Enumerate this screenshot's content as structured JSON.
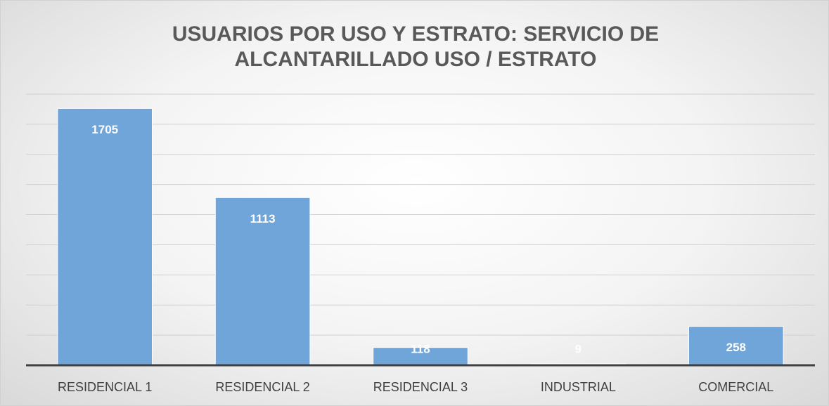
{
  "chart_data": {
    "type": "bar",
    "title": "USUARIOS POR USO Y ESTRATO:  SERVICIO DE ALCANTARILLADO USO / ESTRATO",
    "categories": [
      "RESIDENCIAL 1",
      "RESIDENCIAL 2",
      "RESIDENCIAL 3",
      "INDUSTRIAL",
      "COMERCIAL"
    ],
    "values": [
      1705,
      1113,
      118,
      9,
      258
    ],
    "color": "#6fa5d9",
    "ylim": [
      0,
      1800
    ],
    "yticks": [
      0,
      200,
      400,
      600,
      800,
      1000,
      1200,
      1400,
      1600,
      1800
    ],
    "grid": true
  }
}
